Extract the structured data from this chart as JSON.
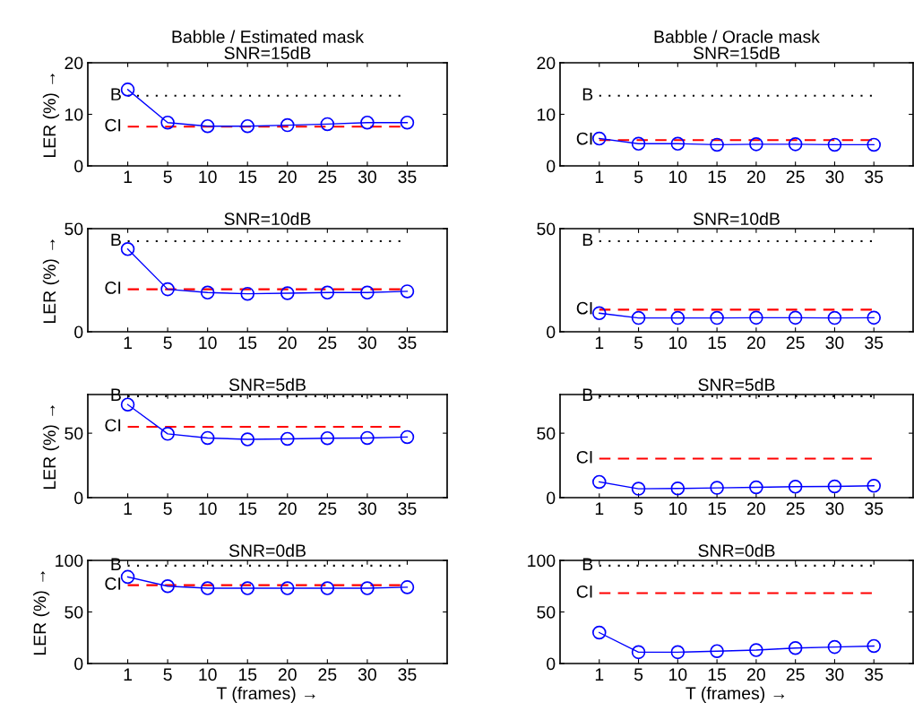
{
  "chart_data": [
    {
      "type": "line",
      "title": "Babble / Estimated mask\nSNR=15dB",
      "ylabel": "LER (%) →",
      "categories": [
        "1",
        "5",
        "10",
        "15",
        "20",
        "25",
        "30",
        "35"
      ],
      "ylim": [
        0,
        20
      ],
      "yticks": [
        0,
        10,
        20
      ],
      "marker": "circle",
      "line_style": "solid",
      "grid": false,
      "series": [
        {
          "color": "#0000ff",
          "values": [
            14.8,
            8.4,
            7.7,
            7.7,
            7.9,
            8.1,
            8.4,
            8.4
          ]
        }
      ],
      "ref_lines": [
        {
          "axis": "y",
          "value": 13.6,
          "label": "B",
          "color": "#000000",
          "line_style": "dotted"
        },
        {
          "axis": "y",
          "value": 7.6,
          "label": "CI",
          "color": "#ff0000",
          "line_style": "dashed"
        }
      ]
    },
    {
      "type": "line",
      "title": "Babble / Oracle mask\nSNR=15dB",
      "categories": [
        "1",
        "5",
        "10",
        "15",
        "20",
        "25",
        "30",
        "35"
      ],
      "ylim": [
        0,
        20
      ],
      "yticks": [
        0,
        10,
        20
      ],
      "marker": "circle",
      "line_style": "solid",
      "grid": false,
      "series": [
        {
          "color": "#0000ff",
          "values": [
            5.3,
            4.3,
            4.3,
            4.1,
            4.2,
            4.2,
            4.1,
            4.1
          ]
        }
      ],
      "ref_lines": [
        {
          "axis": "y",
          "value": 13.6,
          "label": "B",
          "color": "#000000",
          "line_style": "dotted"
        },
        {
          "axis": "y",
          "value": 5.0,
          "label": "CI",
          "color": "#ff0000",
          "line_style": "dashed"
        }
      ]
    },
    {
      "type": "line",
      "title": "SNR=10dB",
      "ylabel": "LER (%) →",
      "categories": [
        "1",
        "5",
        "10",
        "15",
        "20",
        "25",
        "30",
        "35"
      ],
      "ylim": [
        0,
        50
      ],
      "yticks": [
        0,
        50
      ],
      "marker": "circle",
      "line_style": "solid",
      "grid": false,
      "series": [
        {
          "color": "#0000ff",
          "values": [
            40.1,
            20.6,
            19.0,
            18.4,
            18.7,
            19.0,
            19.0,
            19.6
          ]
        }
      ],
      "ref_lines": [
        {
          "axis": "y",
          "value": 43.9,
          "label": "B",
          "color": "#000000",
          "line_style": "dotted"
        },
        {
          "axis": "y",
          "value": 20.6,
          "label": "CI",
          "color": "#ff0000",
          "line_style": "dashed"
        }
      ]
    },
    {
      "type": "line",
      "title": "SNR=10dB",
      "categories": [
        "1",
        "5",
        "10",
        "15",
        "20",
        "25",
        "30",
        "35"
      ],
      "ylim": [
        0,
        50
      ],
      "yticks": [
        0,
        50
      ],
      "marker": "circle",
      "line_style": "solid",
      "grid": false,
      "series": [
        {
          "color": "#0000ff",
          "values": [
            9.0,
            6.7,
            6.7,
            6.7,
            6.8,
            6.8,
            6.7,
            6.8
          ]
        }
      ],
      "ref_lines": [
        {
          "axis": "y",
          "value": 43.9,
          "label": "B",
          "color": "#000000",
          "line_style": "dotted"
        },
        {
          "axis": "y",
          "value": 10.7,
          "label": "CI",
          "color": "#ff0000",
          "line_style": "dashed"
        }
      ]
    },
    {
      "type": "line",
      "title": "SNR=5dB",
      "ylabel": "LER (%) →",
      "categories": [
        "1",
        "5",
        "10",
        "15",
        "20",
        "25",
        "30",
        "35"
      ],
      "ylim": [
        0,
        80
      ],
      "yticks": [
        0,
        50
      ],
      "marker": "circle",
      "line_style": "solid",
      "grid": false,
      "series": [
        {
          "color": "#0000ff",
          "values": [
            72.2,
            49.5,
            46.3,
            45.2,
            45.6,
            46.1,
            46.3,
            47.0
          ]
        }
      ],
      "ref_lines": [
        {
          "axis": "y",
          "value": 78.7,
          "label": "B",
          "color": "#000000",
          "line_style": "dotted"
        },
        {
          "axis": "y",
          "value": 55.0,
          "label": "CI",
          "color": "#ff0000",
          "line_style": "dashed"
        }
      ]
    },
    {
      "type": "line",
      "title": "SNR=5dB",
      "categories": [
        "1",
        "5",
        "10",
        "15",
        "20",
        "25",
        "30",
        "35"
      ],
      "ylim": [
        0,
        80
      ],
      "yticks": [
        0,
        50
      ],
      "marker": "circle",
      "line_style": "solid",
      "grid": false,
      "series": [
        {
          "color": "#0000ff",
          "values": [
            12.2,
            6.9,
            7.1,
            7.6,
            8.0,
            8.5,
            8.7,
            9.2
          ]
        }
      ],
      "ref_lines": [
        {
          "axis": "y",
          "value": 78.7,
          "label": "B",
          "color": "#000000",
          "line_style": "dotted"
        },
        {
          "axis": "y",
          "value": 30.3,
          "label": "CI",
          "color": "#ff0000",
          "line_style": "dashed"
        }
      ]
    },
    {
      "type": "line",
      "title": "SNR=0dB",
      "ylabel": "LER (%) →",
      "xlabel": "T (frames) →",
      "categories": [
        "1",
        "5",
        "10",
        "15",
        "20",
        "25",
        "30",
        "35"
      ],
      "ylim": [
        0,
        100
      ],
      "yticks": [
        0,
        50,
        100
      ],
      "marker": "circle",
      "line_style": "solid",
      "grid": false,
      "series": [
        {
          "color": "#0000ff",
          "values": [
            84,
            75,
            73,
            73,
            73,
            73,
            73,
            74
          ]
        }
      ],
      "ref_lines": [
        {
          "axis": "y",
          "value": 94.9,
          "label": "B",
          "color": "#000000",
          "line_style": "dotted"
        },
        {
          "axis": "y",
          "value": 76.0,
          "label": "CI",
          "color": "#ff0000",
          "line_style": "dashed"
        }
      ]
    },
    {
      "type": "line",
      "title": "SNR=0dB",
      "xlabel": "T (frames) →",
      "categories": [
        "1",
        "5",
        "10",
        "15",
        "20",
        "25",
        "30",
        "35"
      ],
      "ylim": [
        0,
        100
      ],
      "yticks": [
        0,
        50,
        100
      ],
      "marker": "circle",
      "line_style": "solid",
      "grid": false,
      "series": [
        {
          "color": "#0000ff",
          "values": [
            30,
            11,
            11,
            12,
            13,
            15,
            16,
            17
          ]
        }
      ],
      "ref_lines": [
        {
          "axis": "y",
          "value": 94.9,
          "label": "B",
          "color": "#000000",
          "line_style": "dotted"
        },
        {
          "axis": "y",
          "value": 68.3,
          "label": "CI",
          "color": "#ff0000",
          "line_style": "dashed"
        }
      ]
    }
  ]
}
